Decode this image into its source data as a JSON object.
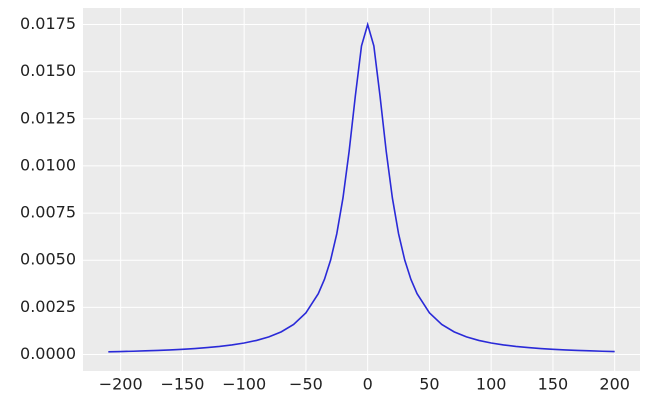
{
  "chart_data": {
    "type": "line",
    "x": [
      -210,
      -200,
      -190,
      -180,
      -170,
      -160,
      -150,
      -140,
      -130,
      -120,
      -110,
      -100,
      -90,
      -80,
      -70,
      -60,
      -50,
      -40,
      -35,
      -30,
      -25,
      -20,
      -15,
      -10,
      -5,
      0,
      5,
      10,
      15,
      20,
      25,
      30,
      35,
      40,
      50,
      60,
      70,
      80,
      90,
      100,
      110,
      120,
      130,
      140,
      150,
      160,
      170,
      180,
      190,
      200
    ],
    "series": [
      {
        "color": "#2a2ad8",
        "values": [
          0.000142,
          0.000157,
          0.000173,
          0.000193,
          0.000216,
          0.000243,
          0.000276,
          0.000317,
          0.000366,
          0.000428,
          0.000507,
          0.00061,
          0.000747,
          0.000934,
          0.001201,
          0.001595,
          0.002208,
          0.003222,
          0.003984,
          0.00501,
          0.006408,
          0.008302,
          0.010783,
          0.013704,
          0.016366,
          0.0175,
          0.016366,
          0.013704,
          0.010783,
          0.008302,
          0.006408,
          0.00501,
          0.003984,
          0.003222,
          0.002208,
          0.001595,
          0.001201,
          0.000934,
          0.000747,
          0.00061,
          0.000507,
          0.000428,
          0.000366,
          0.000317,
          0.000276,
          0.000243,
          0.000216,
          0.000193,
          0.000173,
          0.000157
        ]
      }
    ],
    "xlim": [
      -230.5,
      220.5
    ],
    "xticks": [
      {
        "value": -200,
        "label": "−200"
      },
      {
        "value": -150,
        "label": "−150"
      },
      {
        "value": -100,
        "label": "−100"
      },
      {
        "value": -50,
        "label": "−50"
      },
      0,
      50,
      100,
      150,
      200
    ],
    "ylim": [
      -0.000875,
      0.018375
    ],
    "yticks": [
      {
        "value": 0,
        "label": "0.0000"
      },
      {
        "value": 0.0025,
        "label": "0.0025"
      },
      {
        "value": 0.005,
        "label": "0.0050"
      },
      {
        "value": 0.0075,
        "label": "0.0075"
      },
      {
        "value": 0.01,
        "label": "0.0100"
      },
      {
        "value": 0.0125,
        "label": "0.0125"
      },
      {
        "value": 0.015,
        "label": "0.0150"
      },
      {
        "value": 0.0175,
        "label": "0.0175"
      }
    ],
    "grid": true
  }
}
